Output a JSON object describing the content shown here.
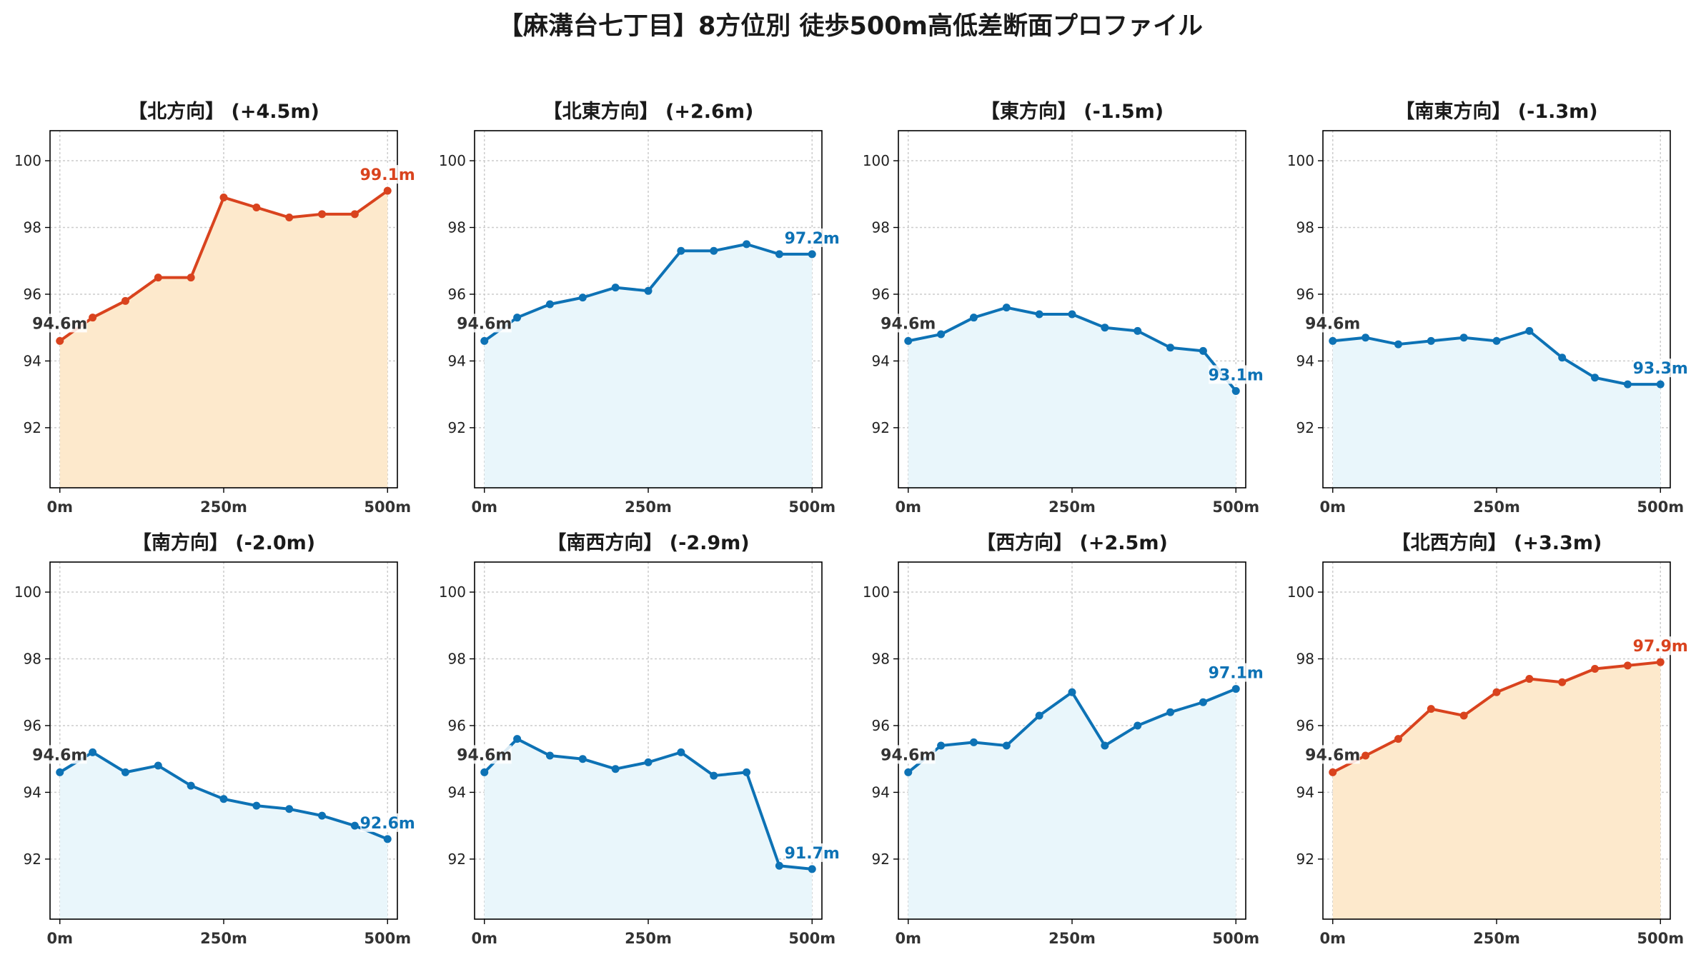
{
  "figure": {
    "title": "【麻溝台七丁目】8方位別 徒歩500m高低差断面プロファイル"
  },
  "colors": {
    "uphill_line": "#d9431e",
    "uphill_fill": "#fde9cc",
    "other_line": "#1f77b4",
    "other_line_actual": "#0d72b5",
    "other_fill": "#e9f6fb",
    "start_label": "#333333",
    "grid": "#cccccc"
  },
  "chart_data": [
    {
      "type": "line",
      "title": "【北方向】 (+4.5m)",
      "style": "uphill",
      "x": [
        0,
        50,
        100,
        150,
        200,
        250,
        300,
        350,
        400,
        450,
        500
      ],
      "y": [
        94.6,
        95.3,
        95.8,
        96.5,
        96.5,
        98.9,
        98.6,
        98.3,
        98.4,
        98.4,
        99.1
      ],
      "start_label": "94.6m",
      "end_label": "99.1m",
      "xticks": [
        "0m",
        "250m",
        "500m"
      ],
      "yticks": [
        92,
        94,
        96,
        98,
        100
      ],
      "xlim": [
        -15,
        515
      ],
      "ylim": [
        90.2,
        100.9
      ],
      "grid": true
    },
    {
      "type": "line",
      "title": "【北東方向】 (+2.6m)",
      "style": "other",
      "x": [
        0,
        50,
        100,
        150,
        200,
        250,
        300,
        350,
        400,
        450,
        500
      ],
      "y": [
        94.6,
        95.3,
        95.7,
        95.9,
        96.2,
        96.1,
        97.3,
        97.3,
        97.5,
        97.2,
        97.2
      ],
      "start_label": "94.6m",
      "end_label": "97.2m",
      "xticks": [
        "0m",
        "250m",
        "500m"
      ],
      "yticks": [
        92,
        94,
        96,
        98,
        100
      ],
      "xlim": [
        -15,
        515
      ],
      "ylim": [
        90.2,
        100.9
      ],
      "grid": true
    },
    {
      "type": "line",
      "title": "【東方向】 (-1.5m)",
      "style": "other",
      "x": [
        0,
        50,
        100,
        150,
        200,
        250,
        300,
        350,
        400,
        450,
        500
      ],
      "y": [
        94.6,
        94.8,
        95.3,
        95.6,
        95.4,
        95.4,
        95.0,
        94.9,
        94.4,
        94.3,
        93.1
      ],
      "start_label": "94.6m",
      "end_label": "93.1m",
      "xticks": [
        "0m",
        "250m",
        "500m"
      ],
      "yticks": [
        92,
        94,
        96,
        98,
        100
      ],
      "xlim": [
        -15,
        515
      ],
      "ylim": [
        90.2,
        100.9
      ],
      "grid": true
    },
    {
      "type": "line",
      "title": "【南東方向】 (-1.3m)",
      "style": "other",
      "x": [
        0,
        50,
        100,
        150,
        200,
        250,
        300,
        350,
        400,
        450,
        500
      ],
      "y": [
        94.6,
        94.7,
        94.5,
        94.6,
        94.7,
        94.6,
        94.9,
        94.1,
        93.5,
        93.3,
        93.3
      ],
      "start_label": "94.6m",
      "end_label": "93.3m",
      "xticks": [
        "0m",
        "250m",
        "500m"
      ],
      "yticks": [
        92,
        94,
        96,
        98,
        100
      ],
      "xlim": [
        -15,
        515
      ],
      "ylim": [
        90.2,
        100.9
      ],
      "grid": true
    },
    {
      "type": "line",
      "title": "【南方向】 (-2.0m)",
      "style": "other",
      "x": [
        0,
        50,
        100,
        150,
        200,
        250,
        300,
        350,
        400,
        450,
        500
      ],
      "y": [
        94.6,
        95.2,
        94.6,
        94.8,
        94.2,
        93.8,
        93.6,
        93.5,
        93.3,
        93.0,
        92.6
      ],
      "start_label": "94.6m",
      "end_label": "92.6m",
      "xticks": [
        "0m",
        "250m",
        "500m"
      ],
      "yticks": [
        92,
        94,
        96,
        98,
        100
      ],
      "xlim": [
        -15,
        515
      ],
      "ylim": [
        90.2,
        100.9
      ],
      "grid": true
    },
    {
      "type": "line",
      "title": "【南西方向】 (-2.9m)",
      "style": "other",
      "x": [
        0,
        50,
        100,
        150,
        200,
        250,
        300,
        350,
        400,
        450,
        500
      ],
      "y": [
        94.6,
        95.6,
        95.1,
        95.0,
        94.7,
        94.9,
        95.2,
        94.5,
        94.6,
        91.8,
        91.7
      ],
      "start_label": "94.6m",
      "end_label": "91.7m",
      "xticks": [
        "0m",
        "250m",
        "500m"
      ],
      "yticks": [
        92,
        94,
        96,
        98,
        100
      ],
      "xlim": [
        -15,
        515
      ],
      "ylim": [
        90.2,
        100.9
      ],
      "grid": true
    },
    {
      "type": "line",
      "title": "【西方向】 (+2.5m)",
      "style": "other",
      "x": [
        0,
        50,
        100,
        150,
        200,
        250,
        300,
        350,
        400,
        450,
        500
      ],
      "y": [
        94.6,
        95.4,
        95.5,
        95.4,
        96.3,
        97.0,
        95.4,
        96.0,
        96.4,
        96.7,
        97.1
      ],
      "start_label": "94.6m",
      "end_label": "97.1m",
      "xticks": [
        "0m",
        "250m",
        "500m"
      ],
      "yticks": [
        92,
        94,
        96,
        98,
        100
      ],
      "xlim": [
        -15,
        515
      ],
      "ylim": [
        90.2,
        100.9
      ],
      "grid": true
    },
    {
      "type": "line",
      "title": "【北西方向】 (+3.3m)",
      "style": "uphill",
      "x": [
        0,
        50,
        100,
        150,
        200,
        250,
        300,
        350,
        400,
        450,
        500
      ],
      "y": [
        94.6,
        95.1,
        95.6,
        96.5,
        96.3,
        97.0,
        97.4,
        97.3,
        97.7,
        97.8,
        97.9
      ],
      "start_label": "94.6m",
      "end_label": "97.9m",
      "xticks": [
        "0m",
        "250m",
        "500m"
      ],
      "yticks": [
        92,
        94,
        96,
        98,
        100
      ],
      "xlim": [
        -15,
        515
      ],
      "ylim": [
        90.2,
        100.9
      ],
      "grid": true
    }
  ]
}
